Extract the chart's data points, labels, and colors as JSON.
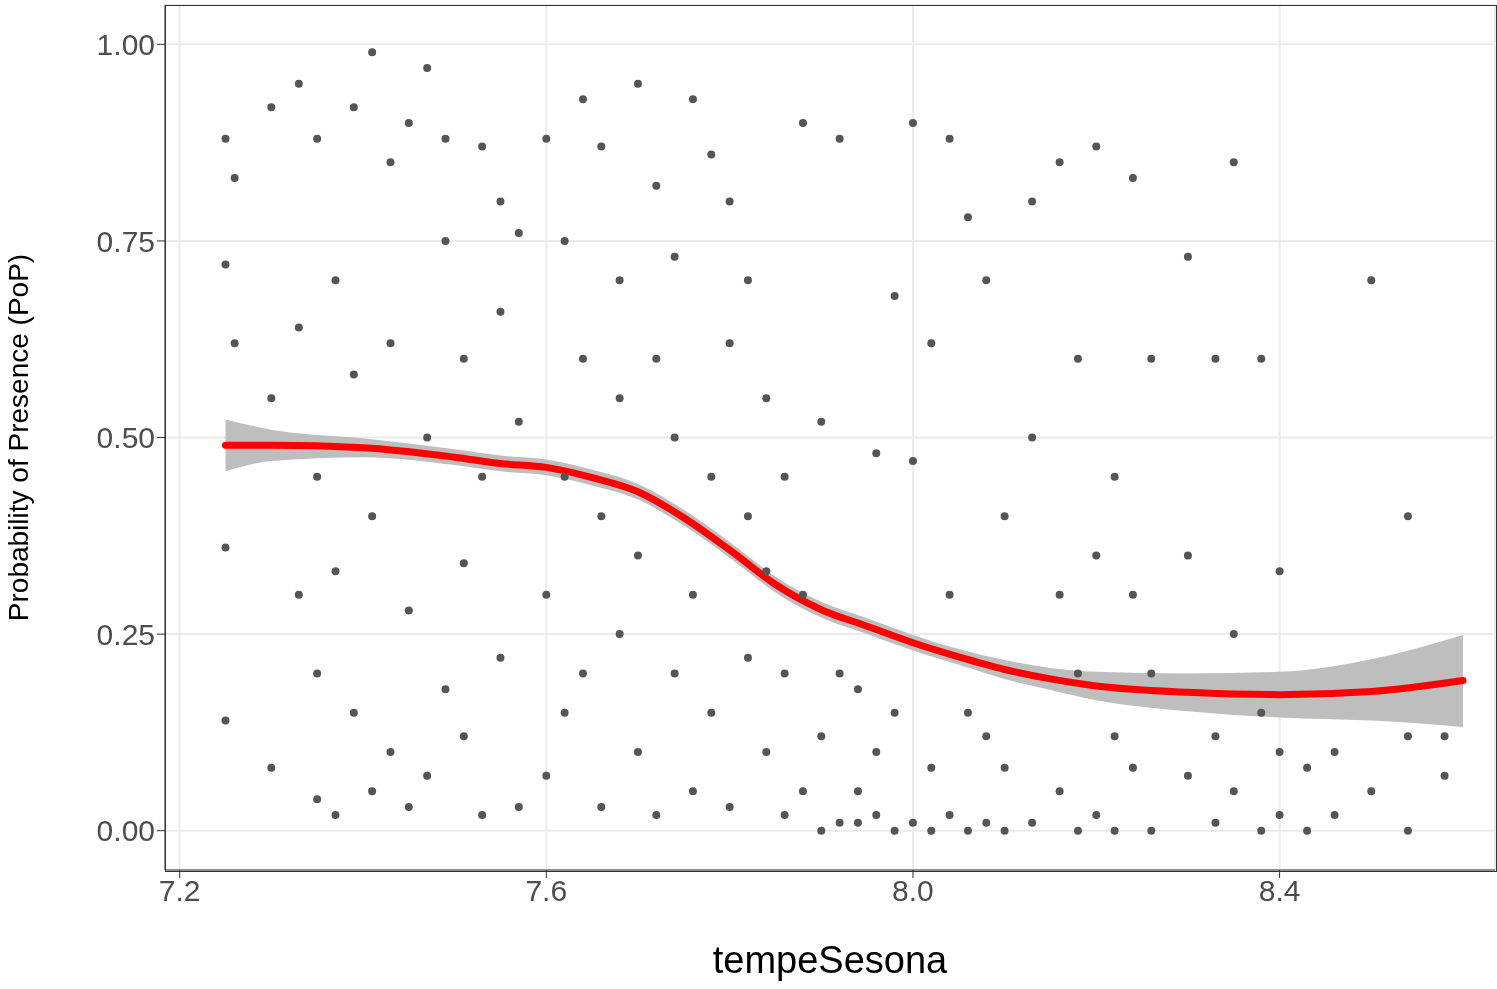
{
  "chart_data": {
    "type": "scatter",
    "xlabel": "tempeSesona",
    "ylabel": "Probability of Presence (PoP)",
    "xlim": [
      7.184,
      8.635
    ],
    "ylim": [
      -0.05,
      1.05
    ],
    "xticks": [
      {
        "value": 7.2,
        "label": "7.2"
      },
      {
        "value": 7.6,
        "label": "7.6"
      },
      {
        "value": 8.0,
        "label": "8.0"
      },
      {
        "value": 8.4,
        "label": "8.4"
      }
    ],
    "yticks": [
      {
        "value": 0,
        "label": "0.00"
      },
      {
        "value": 0.25,
        "label": "0.25"
      },
      {
        "value": 0.5,
        "label": "0.50"
      },
      {
        "value": 0.75,
        "label": "0.75"
      },
      {
        "value": 1,
        "label": "1.00"
      }
    ],
    "grid": true,
    "series": [
      {
        "color": "#555555",
        "marker": "circle",
        "x": [
          7.25,
          7.25,
          7.25,
          7.25,
          7.26,
          7.26,
          7.3,
          7.3,
          7.3,
          7.33,
          7.33,
          7.33,
          7.35,
          7.35,
          7.35,
          7.35,
          7.37,
          7.37,
          7.37,
          7.39,
          7.39,
          7.39,
          7.41,
          7.41,
          7.41,
          7.43,
          7.43,
          7.43,
          7.45,
          7.45,
          7.45,
          7.47,
          7.47,
          7.47,
          7.49,
          7.49,
          7.49,
          7.51,
          7.51,
          7.51,
          7.53,
          7.53,
          7.53,
          7.55,
          7.55,
          7.55,
          7.57,
          7.57,
          7.57,
          7.6,
          7.6,
          7.6,
          7.62,
          7.62,
          7.62,
          7.64,
          7.64,
          7.64,
          7.66,
          7.66,
          7.66,
          7.68,
          7.68,
          7.68,
          7.7,
          7.7,
          7.7,
          7.72,
          7.72,
          7.72,
          7.74,
          7.74,
          7.74,
          7.76,
          7.76,
          7.76,
          7.78,
          7.78,
          7.78,
          7.8,
          7.8,
          7.8,
          7.82,
          7.82,
          7.82,
          7.84,
          7.84,
          7.84,
          7.86,
          7.86,
          7.86,
          7.88,
          7.88,
          7.88,
          7.9,
          7.9,
          7.9,
          7.92,
          7.92,
          7.92,
          7.94,
          7.94,
          7.94,
          7.96,
          7.96,
          7.96,
          7.98,
          7.98,
          7.98,
          8.0,
          8.0,
          8.0,
          8.02,
          8.02,
          8.02,
          8.04,
          8.04,
          8.04,
          8.06,
          8.06,
          8.06,
          8.08,
          8.08,
          8.08,
          8.1,
          8.1,
          8.1,
          8.13,
          8.13,
          8.13,
          8.16,
          8.16,
          8.16,
          8.18,
          8.18,
          8.18,
          8.2,
          8.2,
          8.2,
          8.22,
          8.22,
          8.22,
          8.24,
          8.24,
          8.24,
          8.26,
          8.26,
          8.26,
          8.3,
          8.3,
          8.3,
          8.33,
          8.33,
          8.33,
          8.35,
          8.35,
          8.35,
          8.38,
          8.38,
          8.38,
          8.4,
          8.4,
          8.4,
          8.43,
          8.43,
          8.46,
          8.46,
          8.5,
          8.5,
          8.54,
          8.54,
          8.54,
          8.58,
          8.58
        ],
        "values": [
          0.14,
          0.72,
          0.88,
          0.36,
          0.83,
          0.62,
          0.92,
          0.08,
          0.55,
          0.95,
          0.3,
          0.64,
          0.04,
          0.88,
          0.45,
          0.2,
          0.02,
          0.7,
          0.33,
          0.92,
          0.15,
          0.58,
          0.99,
          0.4,
          0.05,
          0.85,
          0.1,
          0.62,
          0.9,
          0.28,
          0.03,
          0.97,
          0.5,
          0.07,
          0.75,
          0.18,
          0.88,
          0.6,
          0.34,
          0.12,
          0.87,
          0.02,
          0.45,
          0.8,
          0.22,
          0.66,
          0.03,
          0.52,
          0.76,
          0.88,
          0.3,
          0.07,
          0.75,
          0.45,
          0.15,
          0.93,
          0.6,
          0.2,
          0.87,
          0.03,
          0.4,
          0.7,
          0.25,
          0.55,
          0.95,
          0.1,
          0.35,
          0.82,
          0.02,
          0.6,
          0.5,
          0.2,
          0.73,
          0.93,
          0.3,
          0.05,
          0.86,
          0.15,
          0.45,
          0.8,
          0.62,
          0.03,
          0.7,
          0.22,
          0.4,
          0.55,
          0.1,
          0.33,
          0.45,
          0.02,
          0.2,
          0.9,
          0.05,
          0.3,
          0.52,
          0.0,
          0.12,
          0.88,
          0.01,
          0.2,
          0.18,
          0.01,
          0.05,
          0.02,
          0.1,
          0.48,
          0.68,
          0.0,
          0.15,
          0.9,
          0.01,
          0.47,
          0.62,
          0.0,
          0.08,
          0.88,
          0.02,
          0.3,
          0.78,
          0.0,
          0.15,
          0.7,
          0.01,
          0.12,
          0.4,
          0.0,
          0.08,
          0.8,
          0.01,
          0.5,
          0.85,
          0.05,
          0.3,
          0.6,
          0.0,
          0.2,
          0.87,
          0.35,
          0.02,
          0.45,
          0.12,
          0.0,
          0.83,
          0.08,
          0.3,
          0.6,
          0.0,
          0.2,
          0.73,
          0.07,
          0.35,
          0.6,
          0.01,
          0.12,
          0.85,
          0.25,
          0.05,
          0.6,
          0.15,
          0.0,
          0.33,
          0.02,
          0.1,
          0.08,
          0.0,
          0.02,
          0.1,
          0.7,
          0.05,
          0.4,
          0.0,
          0.12,
          0.12,
          0.07
        ]
      },
      {
        "type": "line",
        "color": "#ff0000",
        "marker": "none",
        "x": [
          7.25,
          7.3,
          7.4,
          7.5,
          7.55,
          7.6,
          7.65,
          7.7,
          7.75,
          7.8,
          7.85,
          7.9,
          7.95,
          8.0,
          8.05,
          8.1,
          8.15,
          8.2,
          8.3,
          8.4,
          8.5,
          8.6
        ],
        "values": [
          0.49,
          0.49,
          0.487,
          0.475,
          0.467,
          0.462,
          0.449,
          0.431,
          0.398,
          0.357,
          0.313,
          0.281,
          0.26,
          0.239,
          0.221,
          0.205,
          0.193,
          0.184,
          0.176,
          0.173,
          0.177,
          0.191
        ],
        "lower": [
          0.457,
          0.47,
          0.475,
          0.465,
          0.457,
          0.452,
          0.439,
          0.421,
          0.388,
          0.347,
          0.303,
          0.271,
          0.25,
          0.229,
          0.211,
          0.193,
          0.179,
          0.166,
          0.152,
          0.144,
          0.14,
          0.132
        ],
        "upper": [
          0.523,
          0.51,
          0.499,
          0.485,
          0.477,
          0.472,
          0.459,
          0.441,
          0.408,
          0.367,
          0.323,
          0.291,
          0.27,
          0.249,
          0.231,
          0.217,
          0.207,
          0.202,
          0.2,
          0.202,
          0.218,
          0.249
        ]
      }
    ]
  }
}
